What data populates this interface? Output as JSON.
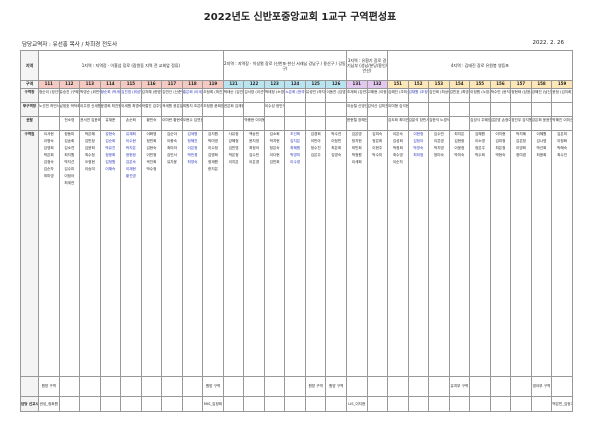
{
  "title": "2022년도 신반포중앙교회 1교구 구역편성표",
  "pastor_line": "담당교역자 : 유선홍 목사 / 차희경 전도사",
  "date": "2022. 2. 26",
  "row_labels": {
    "region": "지역",
    "district": "구역",
    "leader": "구역장",
    "subleader": "부구역장",
    "elder": "권찰",
    "members": "구역원",
    "pastor": "담당 선교사"
  },
  "groups": [
    {
      "desc": "1지역 : 지역장 · 이홍섭 장로 (잠원동 지역 전 교회앞 정류)",
      "span": 9,
      "color": "g1",
      "numbers": [
        "111",
        "112",
        "113",
        "114",
        "115",
        "116",
        "117",
        "118",
        "119"
      ]
    },
    {
      "desc": "2지역 : 지역장 · 이성렬 장로 (신반포·한신 서래님 강남구 / 용산구 / 강동구)",
      "span": 6,
      "color": "g2",
      "numbers": [
        "121",
        "122",
        "123",
        "124",
        "125",
        "126"
      ]
    },
    {
      "desc": "3지역 : 유환기 장로 경기남부 (성남/분당/용인/안산)",
      "span": 2,
      "color": "g3",
      "numbers": [
        "131",
        "132"
      ]
    },
    {
      "desc": "4지역 : 김태진 장로 유원봉 영등포",
      "span": 9,
      "color": "g4",
      "numbers": [
        "151",
        "152",
        "153",
        "154",
        "155",
        "156",
        "157",
        "158",
        "159"
      ]
    }
  ],
  "leaders": [
    "정순이 (장선옥)",
    "유승진 (구혜미)",
    "박영순 (위민행)",
    "황순희 (박세란)",
    "김진영 (위성영)",
    "김지혜 (한명희)",
    "김연선 (신준영)",
    "홍은희 (이세웅)",
    "조정희 (최진)",
    "박태순 (김연지)",
    "김서영 (이선영)",
    "박태정 (소영희)",
    "노은희 (한석빈)",
    "유성빈 (하지성)",
    "이동찬 (김영)",
    "조재희 (강연지)",
    "고해현 (이정임)",
    "김혜진 (조미선)",
    "김채원 (조정현)",
    "김진희 (최상혁)",
    "김민호 (최영미)",
    "이정원 (노창기)",
    "박수빈 (윤석진)",
    "정현태 (남윤서)",
    "강혜진 (남신애)",
    "윤정 (김지희)"
  ],
  "subleaders": [
    "노선민 허민서",
    "남정호 박덕희",
    "이주영 신세원",
    "윤경희 최진현",
    "이세원 최명숙",
    "곽철진 김주영",
    "곽세원 윤은분",
    "최원지 조은하",
    "조정환 윤희정",
    "권은희 김재현",
    "",
    "이수성 정민식",
    "",
    "",
    "",
    "이승철 신영선",
    "김석산 김미진",
    "이미형 김석현",
    "",
    "",
    "",
    "",
    "",
    "",
    "",
    ""
  ],
  "elders": [
    "",
    "전소영",
    "권서연 김윤희",
    "유재준",
    "손순희",
    "황민숙",
    "이미란 황현숙",
    "오현수 김연호",
    "",
    "",
    "박종현 이이봉",
    "",
    "",
    "",
    "",
    "한현철 장혜인",
    "",
    "김도희 최미연",
    "김분석 장민서",
    "김한석 노경석",
    "",
    "김성식 주혜영",
    "김은영 손정이",
    "장진우 강지원",
    "강은희 윤윤진",
    "박혜진 이미선"
  ],
  "members": [
    "이서현|이명숙|김영희|박은희|김정숙|김순자|최미영",
    "정동미|김송희|김소연|최지원|박지선|김수미|이정아|최계연",
    "박은혜|김민정|김윤희|최수정|오정현|이승미",
    "강현숙|김순희|박유진|정윤희|김정원|이해숙",
    "유재희|이수현|박지은|정현정|김은숙|이재현|황진영",
    "이화영|정민희|김현숙|이민정|곽진희|박수정",
    "김순아|이종숙|최미라|김민서|유지윤",
    "김세명|정혜진|이은정|박민경|최영숙",
    "김지원|박미영|이수정|김명희|정재원|한지은",
    "사유정|강혜정|김민영|박은정|이지은",
    "백승민|윤지영|최정아|김수민|이은경",
    "김소희|박지현|정은숙|이다현|김민희",
    "조선희|김지은|최혜원|박영미|이수영",
    "김경희|이민아|정수진|김은주",
    "박수연|이정민|최은희|김영숙",
    "김은영|정지현|최민희|박정원|이세희",
    "김미숙|정은희|이현주|박수미",
    "이은숙|김성희|박정희|최수영|이순자",
    "이현정|김정아|박영숙|최미정",
    "김수빈|이은영|박지영|정미숙",
    "최지은|김현정|이윤정|박미숙",
    "김혜원|이소영|정은주|박수희",
    "이지현|김미정|최은정|박현숙",
    "박지혜|김은정|이영희|정미경",
    "이혜원|김나영|박선희|최윤희",
    "김은미|이정화|박혜숙|최수진"
  ],
  "footer_notes": [
    "원방 구역",
    "",
    "",
    "",
    "",
    "",
    "",
    "",
    "원방 구역",
    "",
    "",
    "",
    "",
    "원방 구역",
    "원방 구역",
    "",
    "",
    "",
    "",
    "",
    "유치부 구역",
    "",
    "",
    "",
    "영아부 구역",
    ""
  ],
  "pastors": [
    "권성_정희원",
    "",
    "",
    "",
    "",
    "",
    "",
    "",
    "MIS_김정희",
    "",
    "",
    "",
    "",
    "",
    "",
    "LIS_이지현",
    "",
    "",
    "",
    "",
    "",
    "",
    "",
    "",
    "",
    "백은빈_김정기"
  ],
  "blue_cells": [
    3,
    4,
    7,
    12,
    18
  ]
}
